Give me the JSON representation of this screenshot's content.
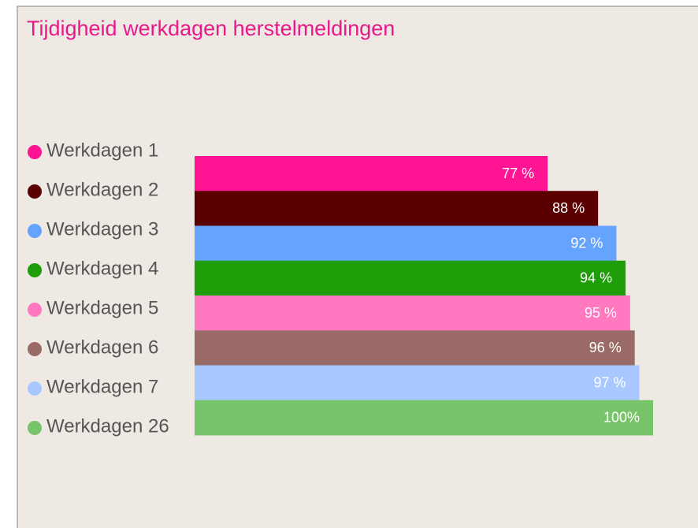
{
  "chart_data": {
    "type": "hbar",
    "title": "Tijdigheid werkdagen herstelmeldingen",
    "categories": [
      "Werkdagen 1",
      "Werkdagen 2",
      "Werkdagen 3",
      "Werkdagen 4",
      "Werkdagen 5",
      "Werkdagen 6",
      "Werkdagen 7",
      "Werkdagen 26"
    ],
    "values": [
      77,
      88,
      92,
      94,
      95,
      96,
      97,
      100
    ],
    "value_labels": [
      "77 %",
      "88 %",
      "92 %",
      "94 %",
      "95 %",
      "96 %",
      "97 %",
      "100%"
    ],
    "colors": [
      "#ff1493",
      "#5a0000",
      "#66a3ff",
      "#1f9e0a",
      "#ff78c0",
      "#9a6a66",
      "#a8c8ff",
      "#78c46a"
    ],
    "xlim": [
      0,
      100
    ],
    "legend": "left"
  }
}
